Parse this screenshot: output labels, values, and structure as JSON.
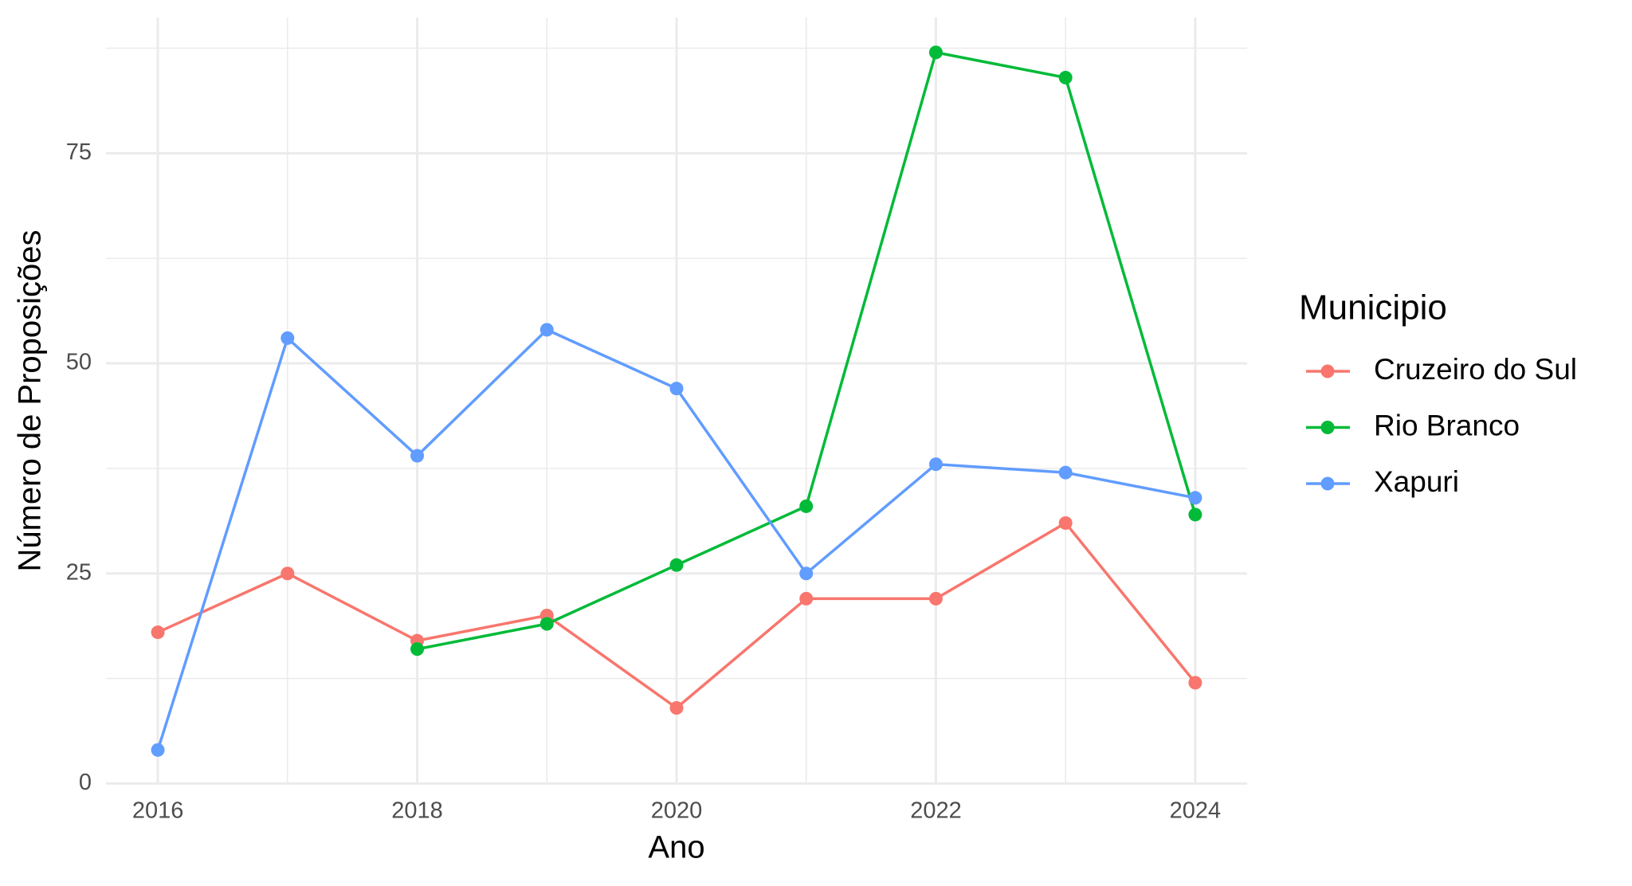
{
  "chart_data": {
    "type": "line",
    "x_label": "Ano",
    "y_label": "Número de Proposições",
    "legend_title": "Municipio",
    "legend_position": "right",
    "x": [
      2016,
      2017,
      2018,
      2019,
      2020,
      2021,
      2022,
      2023,
      2024
    ],
    "series": [
      {
        "name": "Cruzeiro do Sul",
        "color": "#F8766D",
        "values": [
          18,
          25,
          17,
          20,
          9,
          22,
          22,
          31,
          12
        ]
      },
      {
        "name": "Rio Branco",
        "color": "#00BA38",
        "values": [
          null,
          null,
          16,
          19,
          26,
          33,
          87,
          84,
          32
        ]
      },
      {
        "name": "Xapuri",
        "color": "#619CFF",
        "values": [
          4,
          53,
          39,
          54,
          47,
          25,
          38,
          37,
          34
        ]
      }
    ],
    "xlim": [
      2015.6,
      2024.4
    ],
    "xticks": [
      2016,
      2018,
      2020,
      2022,
      2024
    ],
    "minor_xticks": [
      2017,
      2019,
      2021,
      2023
    ],
    "ylim": [
      -0.15,
      91.15
    ],
    "yticks": [
      0,
      25,
      50,
      75
    ],
    "minor_yticks": [
      12.5,
      37.5,
      62.5,
      87.5
    ],
    "grid": true
  }
}
